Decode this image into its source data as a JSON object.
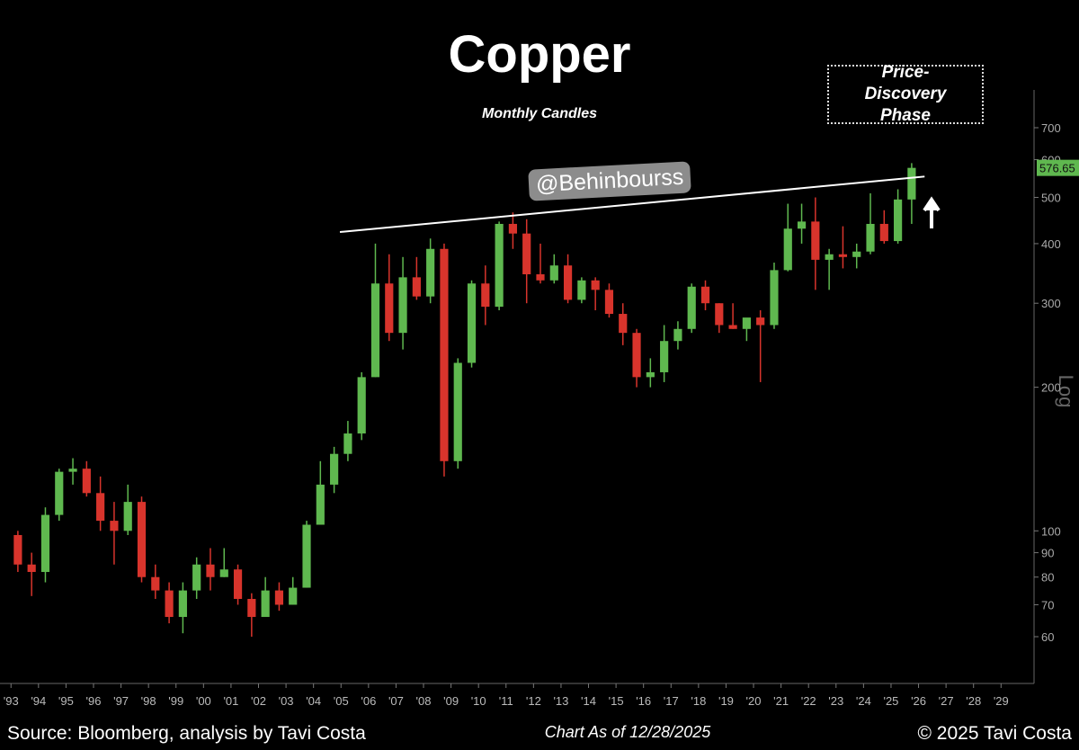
{
  "chart_data": {
    "type": "candlestick",
    "title": "Copper",
    "subtitle": "Monthly Candles",
    "annotation": "Price-Discovery Phase",
    "watermark": "@Behinbourss",
    "scale_label": "Log",
    "source": "Source: Bloomberg, analysis by Tavi Costa",
    "as_of": "Chart As of 12/28/2025",
    "copyright": "© 2025 Tavi Costa",
    "log_scale": true,
    "up_color": "#5fb84f",
    "down_color": "#d8342c",
    "xlim": [
      1992.6,
      2030.2
    ],
    "ylim": [
      50,
      840
    ],
    "yticks": [
      60,
      70,
      80,
      90,
      100,
      200,
      300,
      400,
      500,
      600,
      700
    ],
    "xticks": [
      {
        "value": 1993,
        "label": "'93"
      },
      {
        "value": 1994,
        "label": "'94"
      },
      {
        "value": 1995,
        "label": "'95"
      },
      {
        "value": 1996,
        "label": "'96"
      },
      {
        "value": 1997,
        "label": "'97"
      },
      {
        "value": 1998,
        "label": "'98"
      },
      {
        "value": 1999,
        "label": "'99"
      },
      {
        "value": 2000,
        "label": "'00"
      },
      {
        "value": 2001,
        "label": "'01"
      },
      {
        "value": 2002,
        "label": "'02"
      },
      {
        "value": 2003,
        "label": "'03"
      },
      {
        "value": 2004,
        "label": "'04"
      },
      {
        "value": 2005,
        "label": "'05"
      },
      {
        "value": 2006,
        "label": "'06"
      },
      {
        "value": 2007,
        "label": "'07"
      },
      {
        "value": 2008,
        "label": "'08"
      },
      {
        "value": 2009,
        "label": "'09"
      },
      {
        "value": 2010,
        "label": "'10"
      },
      {
        "value": 2011,
        "label": "'11"
      },
      {
        "value": 2012,
        "label": "'12"
      },
      {
        "value": 2013,
        "label": "'13"
      },
      {
        "value": 2014,
        "label": "'14"
      },
      {
        "value": 2015,
        "label": "'15"
      },
      {
        "value": 2016,
        "label": "'16"
      },
      {
        "value": 2017,
        "label": "'17"
      },
      {
        "value": 2018,
        "label": "'18"
      },
      {
        "value": 2019,
        "label": "'19"
      },
      {
        "value": 2020,
        "label": "'20"
      },
      {
        "value": 2021,
        "label": "'21"
      },
      {
        "value": 2022,
        "label": "'22"
      },
      {
        "value": 2023,
        "label": "'23"
      },
      {
        "value": 2024,
        "label": "'24"
      },
      {
        "value": 2025,
        "label": "'25"
      },
      {
        "value": 2026,
        "label": "'26"
      },
      {
        "value": 2027,
        "label": "'27"
      },
      {
        "value": 2028,
        "label": "'28"
      },
      {
        "value": 2029,
        "label": "'29"
      }
    ],
    "x": [
      1993.25,
      1993.75,
      1994.25,
      1994.75,
      1995.25,
      1995.75,
      1996.25,
      1996.75,
      1997.25,
      1997.75,
      1998.25,
      1998.75,
      1999.25,
      1999.75,
      2000.25,
      2000.75,
      2001.25,
      2001.75,
      2002.25,
      2002.75,
      2003.25,
      2003.75,
      2004.25,
      2004.75,
      2005.25,
      2005.75,
      2006.25,
      2006.75,
      2007.25,
      2007.75,
      2008.25,
      2008.75,
      2009.25,
      2009.75,
      2010.25,
      2010.75,
      2011.25,
      2011.75,
      2012.25,
      2012.75,
      2013.25,
      2013.75,
      2014.25,
      2014.75,
      2015.25,
      2015.75,
      2016.25,
      2016.75,
      2017.25,
      2017.75,
      2018.25,
      2018.75,
      2019.25,
      2019.75,
      2020.25,
      2020.75,
      2021.25,
      2021.75,
      2022.25,
      2022.75,
      2023.25,
      2023.75,
      2024.25,
      2024.75,
      2025.25,
      2025.75
    ],
    "open": [
      98,
      85,
      82,
      108,
      133,
      135,
      120,
      105,
      100,
      115,
      80,
      75,
      66,
      75,
      85,
      80,
      83,
      72,
      66,
      75,
      70,
      76,
      103,
      125,
      145,
      160,
      210,
      330,
      260,
      340,
      310,
      390,
      140,
      225,
      330,
      295,
      440,
      420,
      345,
      335,
      360,
      305,
      335,
      320,
      285,
      260,
      210,
      215,
      250,
      265,
      325,
      300,
      270,
      265,
      280,
      270,
      352,
      430,
      445,
      370,
      380,
      375,
      385,
      440,
      405,
      495
    ],
    "high": [
      100,
      90,
      112,
      135,
      142,
      140,
      130,
      115,
      125,
      118,
      85,
      78,
      78,
      88,
      92,
      92,
      85,
      74,
      80,
      78,
      80,
      105,
      140,
      150,
      170,
      215,
      400,
      380,
      375,
      375,
      410,
      400,
      230,
      335,
      360,
      445,
      465,
      450,
      400,
      380,
      380,
      340,
      340,
      330,
      300,
      265,
      230,
      270,
      275,
      330,
      335,
      300,
      300,
      275,
      290,
      365,
      485,
      485,
      500,
      390,
      435,
      400,
      510,
      470,
      520,
      590
    ],
    "low": [
      82,
      73,
      78,
      105,
      125,
      118,
      100,
      85,
      98,
      78,
      72,
      64,
      61,
      72,
      75,
      80,
      70,
      60,
      68,
      68,
      70,
      76,
      105,
      120,
      140,
      155,
      210,
      250,
      240,
      305,
      300,
      130,
      135,
      220,
      270,
      290,
      390,
      300,
      330,
      330,
      300,
      300,
      290,
      280,
      245,
      200,
      200,
      205,
      240,
      260,
      290,
      260,
      265,
      250,
      205,
      265,
      350,
      400,
      320,
      320,
      355,
      355,
      380,
      400,
      400,
      440
    ],
    "close": [
      85,
      82,
      108,
      133,
      135,
      120,
      105,
      100,
      115,
      80,
      75,
      66,
      75,
      85,
      80,
      83,
      72,
      66,
      75,
      70,
      76,
      103,
      125,
      145,
      160,
      210,
      330,
      260,
      340,
      310,
      390,
      140,
      225,
      330,
      295,
      440,
      420,
      345,
      335,
      360,
      305,
      335,
      320,
      285,
      260,
      210,
      215,
      250,
      265,
      325,
      300,
      270,
      265,
      280,
      270,
      352,
      430,
      445,
      370,
      380,
      375,
      385,
      440,
      405,
      495,
      576.65
    ],
    "trendline": {
      "x": [
        2004.96,
        2026.22
      ],
      "y": [
        423,
        553
      ]
    }
  }
}
